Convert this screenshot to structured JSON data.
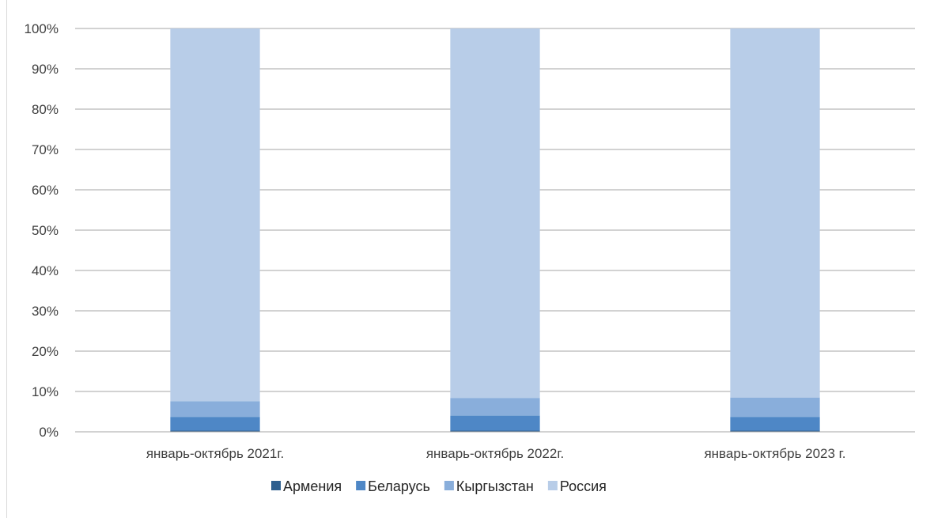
{
  "chart_data": {
    "type": "bar",
    "stacked": true,
    "percent_scale": true,
    "categories": [
      "январь-октябрь 2021г.",
      "январь-октябрь 2022г.",
      "январь-октябрь 2023 г."
    ],
    "series": [
      {
        "name": "Армения",
        "color": "#2e5f8f",
        "values": [
          0.3,
          0.3,
          0.3
        ]
      },
      {
        "name": "Беларусь",
        "color": "#4e87c6",
        "values": [
          3.4,
          3.7,
          3.4
        ]
      },
      {
        "name": "Кыргызстан",
        "color": "#89aedb",
        "values": [
          3.9,
          4.4,
          4.8
        ]
      },
      {
        "name": "Россия",
        "color": "#b8cde8",
        "values": [
          92.4,
          91.6,
          91.5
        ]
      }
    ],
    "ylim": [
      0,
      100
    ],
    "y_ticks": [
      "0%",
      "10%",
      "20%",
      "30%",
      "40%",
      "50%",
      "60%",
      "70%",
      "80%",
      "90%",
      "100%"
    ],
    "grid": true,
    "legend_position": "bottom"
  }
}
